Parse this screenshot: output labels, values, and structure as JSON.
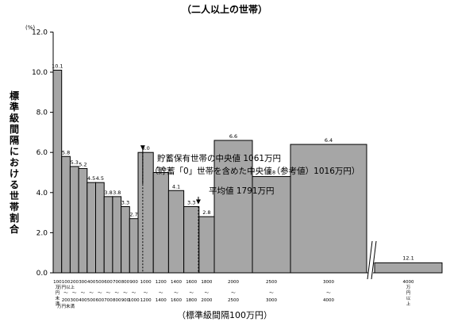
{
  "chart_data": {
    "type": "bar",
    "title": "（二人以上の世帯）",
    "ylabel": "標準級間隔における世帯割合",
    "yunit": "(%)",
    "xlabel": "（標準級間隔100万円）",
    "ylim": [
      0,
      12
    ],
    "yticks": [
      "0.0",
      "2.0",
      "4.0",
      "6.0",
      "8.0",
      "10.0",
      "12.0"
    ],
    "bins": [
      {
        "from": 0,
        "to": 100,
        "value": 10.1
      },
      {
        "from": 100,
        "to": 200,
        "value": 5.8
      },
      {
        "from": 200,
        "to": 300,
        "value": 5.3
      },
      {
        "from": 300,
        "to": 400,
        "value": 5.2
      },
      {
        "from": 400,
        "to": 500,
        "value": 4.5
      },
      {
        "from": 500,
        "to": 600,
        "value": 4.5
      },
      {
        "from": 600,
        "to": 700,
        "value": 3.8
      },
      {
        "from": 700,
        "to": 800,
        "value": 3.8
      },
      {
        "from": 800,
        "to": 900,
        "value": 3.3
      },
      {
        "from": 900,
        "to": 1000,
        "value": 2.7
      },
      {
        "from": 1000,
        "to": 1200,
        "value": 6.0
      },
      {
        "from": 1200,
        "to": 1400,
        "value": 5.0
      },
      {
        "from": 1400,
        "to": 1600,
        "value": 4.1
      },
      {
        "from": 1600,
        "to": 1800,
        "value": 3.3
      },
      {
        "from": 1800,
        "to": 2000,
        "value": 2.8
      },
      {
        "from": 2000,
        "to": 2500,
        "value": 6.6
      },
      {
        "from": 2500,
        "to": 3000,
        "value": 4.8
      },
      {
        "from": 3000,
        "to": 4000,
        "value": 6.4
      },
      {
        "from": 4000,
        "to": null,
        "value": 12.1
      }
    ],
    "value_labels": [
      "10.1",
      "5.8",
      "5.3",
      "5.2",
      "4.5",
      "4.5",
      "3.8",
      "3.8",
      "3.3",
      "2.7",
      "6.0",
      "5.0",
      "4.1",
      "3.3",
      "2.8",
      "6.6",
      "4.8",
      "6.4",
      "12.1"
    ],
    "x_labels": {
      "first": [
        "100",
        "万",
        "円",
        "未",
        "満"
      ],
      "small": [
        [
          "100",
          "万円以上",
          "〜",
          "200",
          "万円未満"
        ],
        [
          "200",
          "〜",
          "300"
        ],
        [
          "300",
          "〜",
          "400"
        ],
        [
          "400",
          "〜",
          "500"
        ],
        [
          "500",
          "〜",
          "600"
        ],
        [
          "600",
          "〜",
          "700"
        ],
        [
          "700",
          "〜",
          "800"
        ],
        [
          "800",
          "〜",
          "900"
        ],
        [
          "900",
          "〜",
          "1000"
        ]
      ],
      "wide": [
        [
          "1000",
          "〜",
          "1200"
        ],
        [
          "1200",
          "〜",
          "1400"
        ],
        [
          "1400",
          "〜",
          "1600"
        ],
        [
          "1600",
          "〜",
          "1800"
        ],
        [
          "1800",
          "〜",
          "2000"
        ],
        [
          "2000",
          "〜",
          "2500"
        ],
        [
          "2500",
          "〜",
          "3000"
        ],
        [
          "3000",
          "〜",
          "4000"
        ]
      ],
      "last": [
        "4000",
        "万",
        "円",
        "以",
        "上"
      ]
    },
    "annotations": [
      {
        "id": "median",
        "x": 1061,
        "lines": [
          "貯蓄保有世帯の中央値 1061万円",
          "（貯蓄「0」世帯を含めた中央値（参考値）1016万円）"
        ]
      },
      {
        "id": "mean",
        "x": 1791,
        "lines": [
          "平均値 1791万円"
        ]
      }
    ],
    "bar_fill": "#a6a6a6",
    "bar_stroke": "#000000"
  }
}
